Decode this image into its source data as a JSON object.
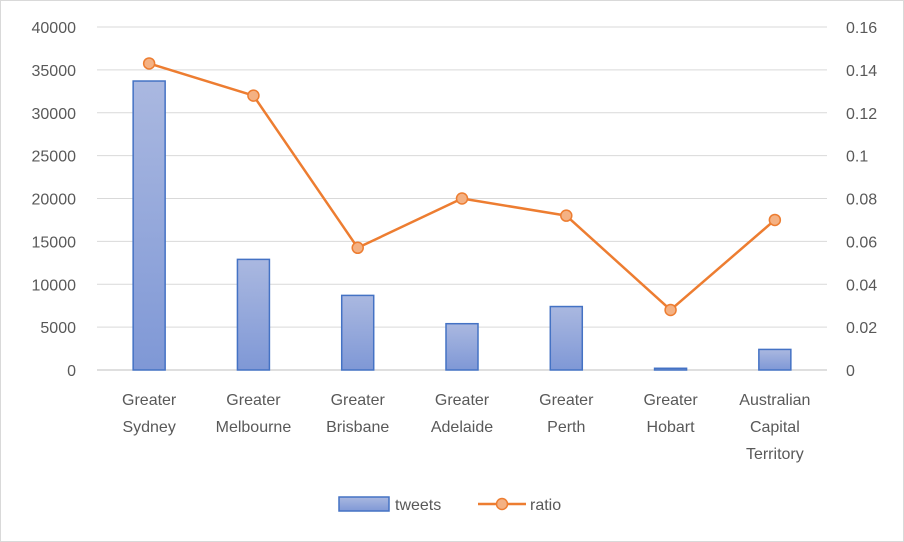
{
  "chart_data": {
    "type": "bar",
    "categories": [
      [
        "Greater",
        "Sydney"
      ],
      [
        "Greater",
        "Melbourne"
      ],
      [
        "Greater",
        "Brisbane"
      ],
      [
        "Greater",
        "Adelaide"
      ],
      [
        "Greater",
        "Perth"
      ],
      [
        "Greater",
        "Hobart"
      ],
      [
        "Australian",
        "Capital",
        "Territory"
      ]
    ],
    "series": [
      {
        "name": "tweets",
        "type": "bar",
        "axis": "left",
        "color": "#8faadc",
        "values": [
          33700,
          12900,
          8700,
          5400,
          7400,
          200,
          2400
        ]
      },
      {
        "name": "ratio",
        "type": "line",
        "axis": "right",
        "color": "#ed7d31",
        "values": [
          0.143,
          0.128,
          0.057,
          0.08,
          0.072,
          0.028,
          0.07
        ]
      }
    ],
    "y_left": {
      "ylim": [
        0,
        40000
      ],
      "ticks": [
        "0",
        "5000",
        "10000",
        "15000",
        "20000",
        "25000",
        "30000",
        "35000",
        "40000"
      ]
    },
    "y_right": {
      "ylim": [
        0,
        0.16
      ],
      "ticks": [
        "0",
        "0.02",
        "0.04",
        "0.06",
        "0.08",
        "0.1",
        "0.12",
        "0.14",
        "0.16"
      ]
    },
    "grid": true,
    "legend_position": "bottom",
    "title": "",
    "xlabel": "",
    "ylabel": ""
  }
}
